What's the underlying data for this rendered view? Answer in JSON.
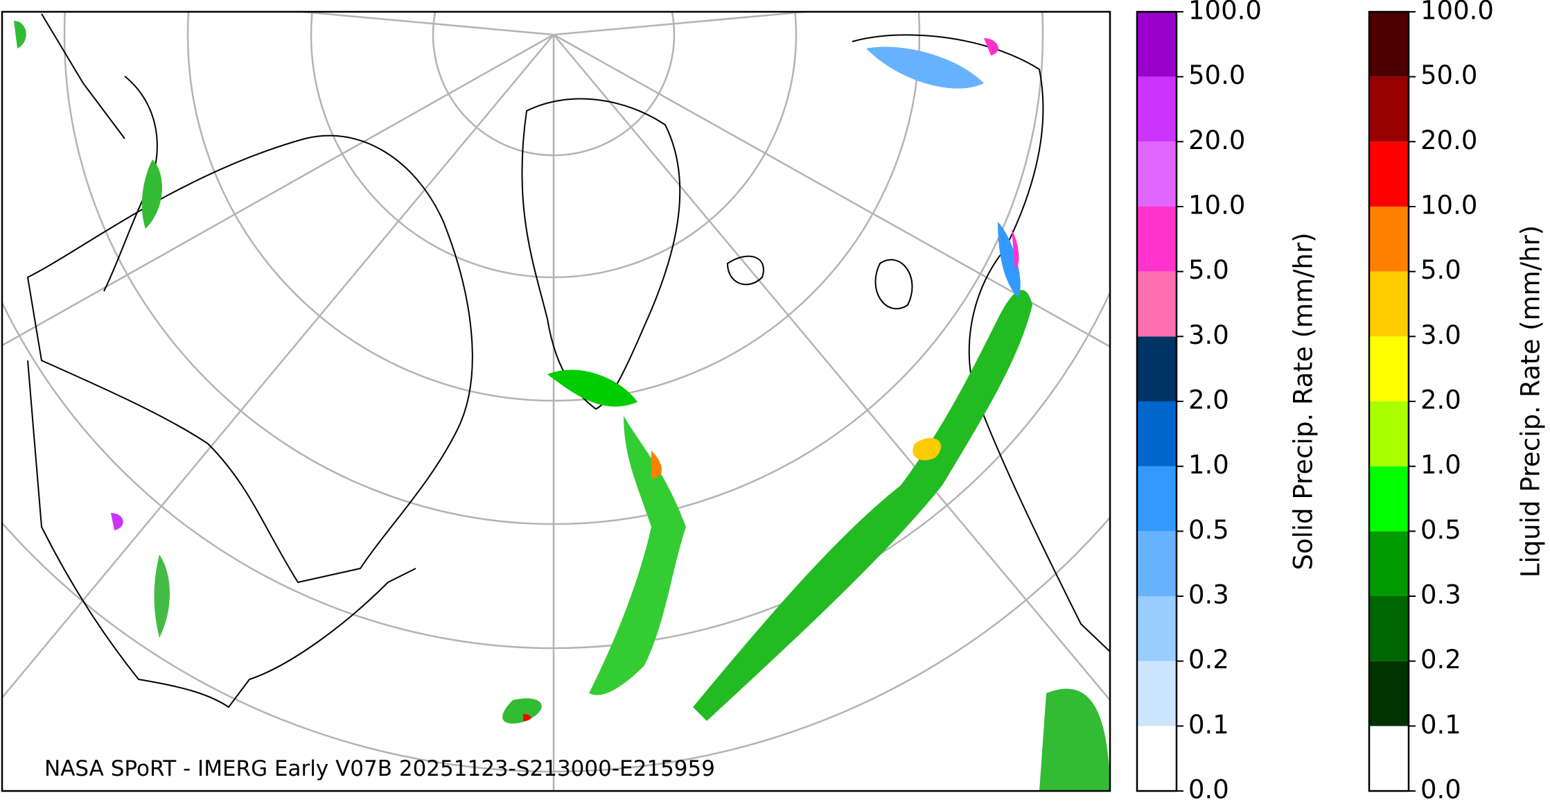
{
  "caption": "NASA SPoRT - IMERG Early V07B 20251123-S213000-E215959",
  "colorbars": [
    {
      "label": "Solid Precip. Rate (mm/hr)",
      "ticks": [
        "0.0",
        "0.1",
        "0.2",
        "0.3",
        "0.5",
        "1.0",
        "2.0",
        "3.0",
        "5.0",
        "10.0",
        "20.0",
        "50.0",
        "100.0"
      ],
      "colors": [
        "#ffffff",
        "#cce5ff",
        "#99ccff",
        "#66b2ff",
        "#3399ff",
        "#0066cc",
        "#003366",
        "#ff6eb0",
        "#ff33cc",
        "#e066ff",
        "#cc33ff",
        "#9900cc"
      ]
    },
    {
      "label": "Liquid Precip. Rate (mm/hr)",
      "ticks": [
        "0.0",
        "0.1",
        "0.2",
        "0.3",
        "0.5",
        "1.0",
        "2.0",
        "3.0",
        "5.0",
        "10.0",
        "20.0",
        "50.0",
        "100.0"
      ],
      "colors": [
        "#ffffff",
        "#003300",
        "#006600",
        "#009900",
        "#00ff00",
        "#aaff00",
        "#ffff00",
        "#ffcc00",
        "#ff8000",
        "#ff0000",
        "#990000",
        "#4d0000"
      ]
    }
  ]
}
